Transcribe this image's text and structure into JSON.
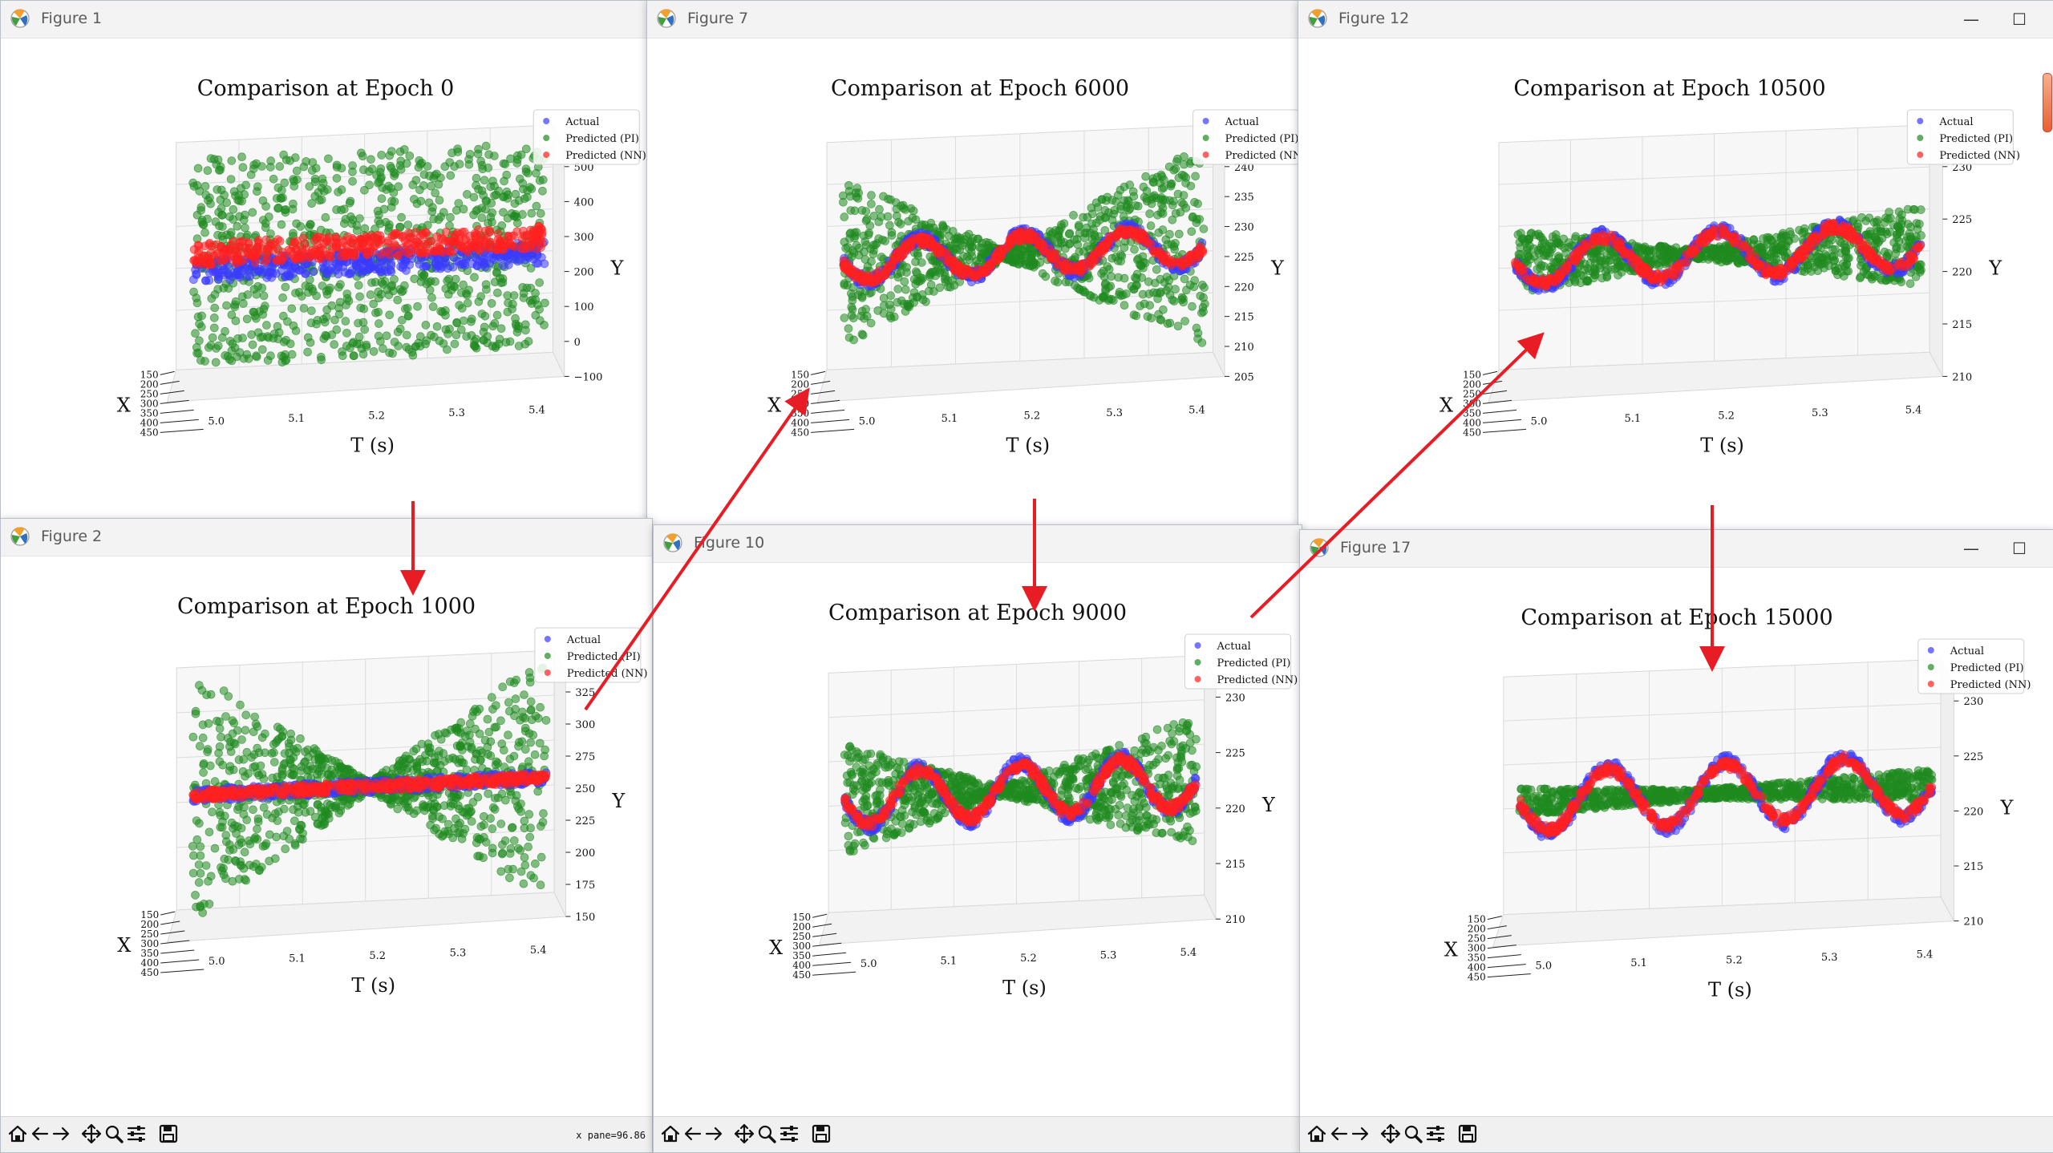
{
  "windows": [
    {
      "id": "w1",
      "title": "Figure 1",
      "cx": "",
      "coord": "",
      "chart": 0
    },
    {
      "id": "w2",
      "title": "Figure 2",
      "cx": "",
      "coord": "x pane=96.86",
      "chart": 1
    },
    {
      "id": "w7",
      "title": "Figure 7",
      "cx": "",
      "coord": "",
      "chart": 2
    },
    {
      "id": "w10",
      "title": "Figure 10",
      "cx": "",
      "coord": "",
      "chart": 3
    },
    {
      "id": "w12",
      "title": "Figure 12",
      "cx": "",
      "coord": "",
      "chart": 4
    },
    {
      "id": "w17",
      "title": "Figure 17",
      "cx": "",
      "coord": "",
      "chart": 5
    }
  ],
  "window_controls": {
    "minimize": "—",
    "maximize": "☐"
  },
  "toolbar_icons": [
    "home-icon",
    "back-icon",
    "forward-icon",
    "pan-icon",
    "zoom-icon",
    "configure-icon",
    "save-icon"
  ],
  "colors": {
    "actual": "#3b3bff",
    "pi": "#1f8a1f",
    "nn": "#ff2020",
    "arrow": "#e81c24"
  },
  "chart_data": [
    {
      "type": "scatter",
      "title": "Comparison at Epoch 0",
      "epoch": 0,
      "xlabel": "X",
      "ylabel": "Y",
      "tlabel": "T (s)",
      "x_ticks": [
        "150",
        "200",
        "250",
        "300",
        "350",
        "400",
        "450"
      ],
      "t_ticks": [
        "5.0",
        "5.1",
        "5.2",
        "5.3",
        "5.4"
      ],
      "y_ticks": [
        "500",
        "400",
        "300",
        "200",
        "100",
        "0",
        "−100"
      ],
      "legend": [
        "Actual",
        "Predicted (PI)",
        "Predicted (NN)"
      ],
      "pattern": "band"
    },
    {
      "type": "scatter",
      "title": "Comparison at Epoch 1000",
      "epoch": 1000,
      "xlabel": "X",
      "ylabel": "Y",
      "tlabel": "T (s)",
      "x_ticks": [
        "150",
        "200",
        "250",
        "300",
        "350",
        "400",
        "450"
      ],
      "t_ticks": [
        "5.0",
        "5.1",
        "5.2",
        "5.3",
        "5.4"
      ],
      "y_ticks": [
        "325",
        "300",
        "275",
        "250",
        "225",
        "200",
        "175",
        "150"
      ],
      "legend": [
        "Actual",
        "Predicted (PI)",
        "Predicted (NN)"
      ],
      "pattern": "bowtie-wide"
    },
    {
      "type": "scatter",
      "title": "Comparison at Epoch 6000",
      "epoch": 6000,
      "xlabel": "X",
      "ylabel": "Y",
      "tlabel": "T (s)",
      "x_ticks": [
        "150",
        "200",
        "250",
        "300",
        "350",
        "400",
        "450"
      ],
      "t_ticks": [
        "5.0",
        "5.1",
        "5.2",
        "5.3",
        "5.4"
      ],
      "y_ticks": [
        "240",
        "235",
        "230",
        "225",
        "220",
        "215",
        "210",
        "205"
      ],
      "legend": [
        "Actual",
        "Predicted (PI)",
        "Predicted (NN)"
      ],
      "pattern": "bowtie-mid"
    },
    {
      "type": "scatter",
      "title": "Comparison at Epoch 9000",
      "epoch": 9000,
      "xlabel": "X",
      "ylabel": "Y",
      "tlabel": "T (s)",
      "x_ticks": [
        "150",
        "200",
        "250",
        "300",
        "350",
        "400",
        "450"
      ],
      "t_ticks": [
        "5.0",
        "5.1",
        "5.2",
        "5.3",
        "5.4"
      ],
      "y_ticks": [
        "230",
        "225",
        "220",
        "215",
        "210"
      ],
      "legend": [
        "Actual",
        "Predicted (PI)",
        "Predicted (NN)"
      ],
      "pattern": "bowtie-small"
    },
    {
      "type": "scatter",
      "title": "Comparison at Epoch 10500",
      "epoch": 10500,
      "xlabel": "X",
      "ylabel": "Y",
      "tlabel": "T (s)",
      "x_ticks": [
        "150",
        "200",
        "250",
        "300",
        "350",
        "400",
        "450"
      ],
      "t_ticks": [
        "5.0",
        "5.1",
        "5.2",
        "5.3",
        "5.4"
      ],
      "y_ticks": [
        "230",
        "225",
        "220",
        "215",
        "210"
      ],
      "legend": [
        "Actual",
        "Predicted (PI)",
        "Predicted (NN)"
      ],
      "pattern": "bowtie-thin"
    },
    {
      "type": "scatter",
      "title": "Comparison at Epoch 15000",
      "epoch": 15000,
      "xlabel": "X",
      "ylabel": "Y",
      "tlabel": "T (s)",
      "x_ticks": [
        "150",
        "200",
        "250",
        "300",
        "350",
        "400",
        "450"
      ],
      "t_ticks": [
        "5.0",
        "5.1",
        "5.2",
        "5.3",
        "5.4"
      ],
      "y_ticks": [
        "230",
        "225",
        "220",
        "215",
        "210"
      ],
      "legend": [
        "Actual",
        "Predicted (PI)",
        "Predicted (NN)"
      ],
      "pattern": "converged"
    }
  ]
}
